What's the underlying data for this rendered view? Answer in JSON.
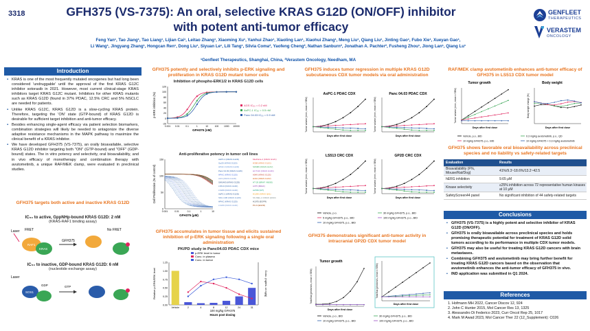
{
  "header": {
    "poster_id": "3318",
    "title_line1": "GFH375 (VS-7375): An oral, selective KRAS G12D (ON/OFF) inhibitor",
    "title_line2": "with potent anti-tumor efficacy",
    "authors_line1": "Feng Yan¹, Tao Jiang¹, Tao Liang¹, Lijian Cai¹, Leitao Zhang¹, Xiaoming Xu¹, Yanhui Zhao¹, Xiaoling Lan¹, Xiaohui Zhang¹, Meng Liu¹, Qiang Liu¹, Jinting Gao¹, Fubo Xie¹, Xueyan Gao¹,",
    "authors_line2": "Li Wang¹, Jingyang Zhang¹, Hongcan Ren¹, Dong Liu¹, Siyuan Le¹, Lili Tang¹, Silvia Coma², Yaofeng Cheng², Nathan Sanburn², Jonathan A. Pachter², Fusheng Zhou¹, Jiong Lan¹, Qiang Lu¹",
    "affiliation": "¹Genfleet Therapeutics, Shanghai, China, ²Verastem Oncology, Needham, MA",
    "logo1_name": "GENFLEET",
    "logo1_sub": "THERAPEUTICS",
    "logo2_name": "VERASTEM",
    "logo2_sub": "ONCOLOGY"
  },
  "introduction": {
    "heading": "Introduction",
    "bullets": [
      "KRAS is one of the most frequently mutated oncogenes but had long been considered 'undruggable' until the approval of the first KRAS G12C inhibitor sotorasib in 2021. However, most current clinical-stage KRAS inhibitors target KRAS G12C mutant. Inhibitors for other KRAS mutants such as KRAS G12D (found in 37% PDAC, 12.5% CRC and 5% NSCLC are needed for patients.",
      "Unlike KRAS G12C, KRAS G12D is a slow-cycling KRAS protein. Therefore, targeting the 'ON' state (GTP-bound) of KRAS G12D is desirable for sufficient target inhibition and anti-tumor efficacy.",
      "Besides enhancing single-agent efficacy via patient selection biomarkers, combination strategies will likely be needed to antagonize the diverse adaptive resistance mechanisms in the MAPK pathway to maximize the clinical benefit of a KRAS inhibitor.",
      "We have developed GFH375 (VS-7375), an orally bioavailable, selective KRAS G12D inhibitor targeting both \"ON\" (GTP-bound) and \"OFF\" (GDP-bound) states. The in vitro potency and selectivity, oral bioavailability, and in vivo efficacy of monotherapy and combination therapy with avutometinib, a unique RAF/MEK clamp, were evaluated in preclinical studies."
    ]
  },
  "targets_section": {
    "heading": "GFH375 targets both active and inactive KRAS G12D",
    "on_title": "IC₅₀ to active, GppNHp-bound KRAS G12D: 2 nM",
    "on_sub": "(KRAS-RAF1 binding assay)",
    "off_title": "IC₅₀ to inactive, GDP-bound KRAS G12D: 6 nM",
    "off_sub": "(nucleotide exchange assay)",
    "labels": {
      "laser": "Laser",
      "fret": "FRET",
      "no_fret": "No FRET",
      "raf1": "RAF1",
      "kras": "KRAS",
      "gfh": "GFH375",
      "sos1": "SOS1",
      "gdp": "GDP",
      "gtp": "GTP",
      "laser2": "Laser"
    }
  },
  "perk_section": {
    "heading": "GFH375 potently and selectively inhibits p-ERK signaling and proliferation in KRAS G12D mutant tumor cells",
    "subtitle": "Inhibition of phospho-ERK1/2 in KRAS G12D cells",
    "ylabel": "p-ERK inhibition (%)",
    "xlabel": "GFH375 (nM)",
    "legend": [
      "AGS IC₅₀ = 0.2 nM",
      "AsPC-1 IC₅₀ = 0.5 nM",
      "Panc 04.03 IC₅₀ = 0.9 nM"
    ],
    "colors": [
      "#e0245e",
      "#3aa655",
      "#2a5caa"
    ],
    "xticks": [
      "0.001",
      "0.01",
      "0.1",
      "1",
      "10",
      "100",
      "1000",
      "10000"
    ],
    "yticks": [
      "-20",
      "0",
      "20",
      "40",
      "60",
      "80",
      "100",
      "120"
    ]
  },
  "prolif_section": {
    "subtitle": "Anti-proliferative potency in tumor cell lines",
    "ylabel": "Cell Proliferation (% of control)",
    "xlabel": "GFH375 (μM)",
    "xticks": [
      "0.001",
      "0.01",
      "0.1",
      "1",
      "10"
    ],
    "yticks": [
      "0",
      "50",
      "100",
      "150"
    ],
    "legend_g12d": [
      "AsPC-1 (KRAS G12D)",
      "Gp2D (KRAS G12D)",
      "HPAF-II (KRAS G12D)",
      "Panc 04.03 (KRAS G12D)",
      "HPAC (KRAS G12D)",
      "AGS (KRAS G12D)",
      "SW1463 (KRAS G12D)",
      "LS513 (KRAS G12D)",
      "LS180 (KRAS G12D)",
      "AsPC-1 (KRAS G12D)",
      "SNU-C2B (KRAS G12D)",
      "HPAC (KRAS G12D)",
      "LS180 (KRAS G12D)"
    ],
    "legend_other": [
      "MiaPaCa-2 (KRAS G12C)",
      "H358 (KRAS G12C)",
      "SW480 (KRAS G12V)",
      "HCT116 (KRAS G13D)",
      "A549 (KRAS G12S)",
      "H441 (KRAS G12V)",
      "HT-29 (BRAF V600E)",
      "A375 (BRAF)",
      "A2780 (WT)",
      "H1299 (NRAS Q61)",
      "SK-MEL-2 (NRAS Q61R)",
      "H1975 (EGFR)",
      "PC-9 (EGFR)"
    ]
  },
  "pkpd_section": {
    "heading": "GFH375 accumulates in tumor tissue and elicits sustained inhibition of p-ERK signaling following a single oral administration",
    "subtitle": "PK/PD study in Panc04.03 PDAC CDX mice",
    "legend": [
      "p-ERK level in tumor",
      "Conc. in plasma",
      "Conc. in tumor"
    ],
    "ylabel_left": "Relative p-ERK/ERK level",
    "ylabel_right": "Conc. (ng/mL or ng/g)",
    "xticks": [
      "Vehicle",
      "2",
      "4",
      "8",
      "12",
      "24",
      "31"
    ],
    "xlabel1": "100 mg/kg GFH375",
    "xlabel2": "Hours post dosing",
    "bar_values": [
      1.0,
      0.08,
      0.05,
      0.06,
      0.12,
      0.25,
      0.5
    ],
    "yticks_left": [
      "0.00",
      "0.25",
      "0.50",
      "0.75",
      "1.00",
      "1.25"
    ]
  },
  "cdx_section": {
    "heading": "GFH375 induces tumor regression in multiple KRAS G12D subcutaneous CDX tumor models via oral administration",
    "models": [
      "AsPC-1 PDAC CDX",
      "Panc 04.03 PDAC CDX",
      "LS513 CRC CDX",
      "GP2D CRC CDX"
    ],
    "ylabel": "Tumor volume (mm³, mean ± SEM)",
    "xlabel": "Days after first dose",
    "legend": [
      "Vehicle, p.o.",
      "5 mg/kg GFH375, p.o., BID",
      "10 mg/kg GFH375, p.o., BID",
      "30 mg/kg GFH375, p.o., BID",
      "100 mg/kg GFH375, p.o., BID"
    ],
    "colors": [
      "#000000",
      "#e0245e",
      "#2a5caa",
      "#3aa655",
      "#9b4fc4"
    ]
  },
  "ip_section": {
    "heading": "GFH375 demonstrates significant anti-tumor activity in intracranial GP2D CDX tumor model",
    "chart1_title": "Tumor growth",
    "ylabel": "Total flux (photons/s, mean ± SEM)",
    "xlabel": "Days after first dose",
    "legend": [
      "Vehicle, p.o., BID",
      "10 mg/kg GFH375, p.o., BID",
      "30 mg/kg GFH375, p.o., BID",
      "100 mg/kg GFH375, p.o., BID"
    ]
  },
  "raf_section": {
    "heading": "RAF/MEK clamp avutometinib enhances anti-tumor efficacy of GFH375 in LS513 CDX tumor model",
    "chart1_title": "Tumor growth",
    "chart2_title": "Body weight",
    "ylabel1": "Tumor volume (mm³, mean ± SEM)",
    "ylabel2": "Body weight change (%)",
    "xlabel": "Days after first dose",
    "legend": [
      "Vehicle, p.o., BID",
      "0.3 mg/kg avutometinib, p.o., QD",
      "10 mg/kg GFH375, p.o., BID",
      "10 mg/kg GFH375 + 0.3 mg/kg avutometinib"
    ]
  },
  "bioavail_section": {
    "heading": "GFH375 shows favorable oral bioavailability across preclinical species and no liability vs safety-related targets",
    "table": [
      {
        "c1": "Evaluation",
        "c2": "Results"
      },
      {
        "c1": "Bioavailability (F%, Mouse/Rat/Dog)",
        "c2": "41%/9.3~18.6%/13.2~42.5"
      },
      {
        "c1": "hERG inhibition",
        "c2": "9.65 μM"
      },
      {
        "c1": "Kinase selectivity",
        "c2": "≤25% inhibition across 72 representative human kinases at 10 μM"
      },
      {
        "c1": "SafetyScreen44 panel",
        "c2": "No significant inhibition of 44 safety-related targets"
      }
    ]
  },
  "conclusions": {
    "heading": "Conclusions",
    "bullets": [
      "GFH375 (VS-7375) is a highly potent and selective inhibitor of KRAS G12D (ON/OFF).",
      "GFH375 is orally bioavailable across preclinical species and holds promising therapeutic potential for treatment of KRAS G12D solid tumors according to its performance in multiple CDX tumor models.",
      "GFH375 may also be useful for treating KRAS G12D cancers with brain metastases.",
      "Combining GFH375 and avutometinib may bring further benefit for treating KRAS G12D cancers based on the observation that avutometinib enhances the anti-tumor efficacy of GFH375 in vivo.",
      "IND application was submitted in Q1 2024."
    ]
  },
  "references": {
    "heading": "References",
    "items": [
      "1. Hofmann MH 2022, Cancer Discov  12, 924",
      "2. John C Hunter 2015, Mol Cancer Res 13, 1325",
      "3. Alessandro Di Federico 2023, Curr Oncol Rep 25, 1017",
      "4. Mark M Awad 2023, Mol Cancer Ther 22 (12_Supplement): C026"
    ]
  }
}
